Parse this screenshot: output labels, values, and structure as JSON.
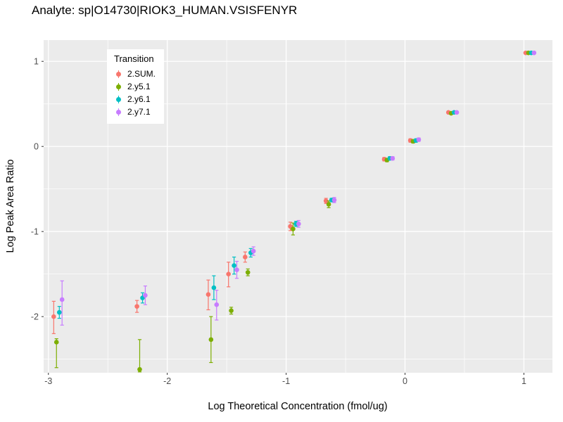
{
  "chart_data": {
    "type": "scatter",
    "title": "Analyte: sp|O14730|RIOK3_HUMAN.VSISFENYR",
    "xlabel": "Log Theoretical Concentration (fmol/ug)",
    "ylabel": "Log Peak Area Ratio",
    "xlim": [
      -3.04,
      1.24
    ],
    "ylim": [
      -2.66,
      1.25
    ],
    "x_ticks": [
      -3,
      -2,
      -1,
      0,
      1
    ],
    "x_minor": [
      -2.5,
      -1.5,
      -0.5,
      0.5
    ],
    "y_ticks": [
      -2,
      -1,
      0,
      1
    ],
    "y_minor": [
      -2.5,
      -1.5,
      -0.5,
      0.5
    ],
    "grid": "on",
    "panel_bg": "#EBEBEB",
    "grid_color": "#FFFFFF",
    "tick_label_color": "#4D4D4D",
    "tick_mark_color": "#333333",
    "legend": {
      "title": "Transition",
      "position": "inside-top-left"
    },
    "point_format": [
      "x",
      "y",
      "err_lo",
      "err_hi"
    ],
    "series": [
      {
        "name": "2.SUM.",
        "color": "#F8766D",
        "points": [
          [
            -2.955,
            -2.0,
            -2.2,
            -1.82
          ],
          [
            -2.255,
            -1.88,
            -1.95,
            -1.81
          ],
          [
            -1.655,
            -1.74,
            -1.92,
            -1.57
          ],
          [
            -1.485,
            -1.5,
            -1.65,
            -1.36
          ],
          [
            -1.345,
            -1.3,
            -1.36,
            -1.24
          ],
          [
            -0.965,
            -0.94,
            -0.99,
            -0.89
          ],
          [
            -0.665,
            -0.64,
            -0.67,
            -0.61
          ],
          [
            -0.175,
            -0.15,
            -0.17,
            -0.13
          ],
          [
            0.045,
            0.07,
            0.05,
            0.09
          ],
          [
            0.365,
            0.4,
            0.39,
            0.41
          ],
          [
            1.015,
            1.1,
            1.09,
            1.11
          ]
        ]
      },
      {
        "name": "2.y5.1",
        "color": "#7CAE00",
        "points": [
          [
            -2.932,
            -2.3,
            -2.6,
            -2.26
          ],
          [
            -2.232,
            -2.62,
            -2.65,
            -2.27
          ],
          [
            -1.632,
            -2.27,
            -2.54,
            -2.0
          ],
          [
            -1.462,
            -1.93,
            -1.97,
            -1.89
          ],
          [
            -1.322,
            -1.48,
            -1.52,
            -1.44
          ],
          [
            -0.942,
            -0.97,
            -1.04,
            -0.9
          ],
          [
            -0.642,
            -0.68,
            -0.72,
            -0.64
          ],
          [
            -0.152,
            -0.16,
            -0.18,
            -0.14
          ],
          [
            0.068,
            0.06,
            0.04,
            0.08
          ],
          [
            0.388,
            0.39,
            0.38,
            0.4
          ],
          [
            1.038,
            1.1,
            1.09,
            1.11
          ]
        ]
      },
      {
        "name": "2.y6.1",
        "color": "#00BFC4",
        "points": [
          [
            -2.908,
            -1.95,
            -2.02,
            -1.88
          ],
          [
            -2.208,
            -1.78,
            -1.84,
            -1.72
          ],
          [
            -1.608,
            -1.66,
            -1.8,
            -1.52
          ],
          [
            -1.438,
            -1.4,
            -1.5,
            -1.3
          ],
          [
            -1.298,
            -1.25,
            -1.3,
            -1.2
          ],
          [
            -0.918,
            -0.91,
            -0.94,
            -0.88
          ],
          [
            -0.618,
            -0.63,
            -0.65,
            -0.61
          ],
          [
            -0.128,
            -0.14,
            -0.16,
            -0.12
          ],
          [
            0.092,
            0.07,
            0.05,
            0.09
          ],
          [
            0.412,
            0.4,
            0.39,
            0.41
          ],
          [
            1.062,
            1.1,
            1.09,
            1.11
          ]
        ]
      },
      {
        "name": "2.y7.1",
        "color": "#C77CFF",
        "points": [
          [
            -2.885,
            -1.8,
            -2.1,
            -1.58
          ],
          [
            -2.185,
            -1.75,
            -1.86,
            -1.64
          ],
          [
            -1.585,
            -1.86,
            -2.04,
            -1.69
          ],
          [
            -1.415,
            -1.45,
            -1.55,
            -1.35
          ],
          [
            -1.275,
            -1.23,
            -1.28,
            -1.18
          ],
          [
            -0.895,
            -0.91,
            -0.95,
            -0.87
          ],
          [
            -0.595,
            -0.63,
            -0.66,
            -0.6
          ],
          [
            -0.105,
            -0.14,
            -0.16,
            -0.12
          ],
          [
            0.115,
            0.08,
            0.06,
            0.1
          ],
          [
            0.435,
            0.4,
            0.39,
            0.41
          ],
          [
            1.085,
            1.1,
            1.09,
            1.11
          ]
        ]
      }
    ]
  }
}
